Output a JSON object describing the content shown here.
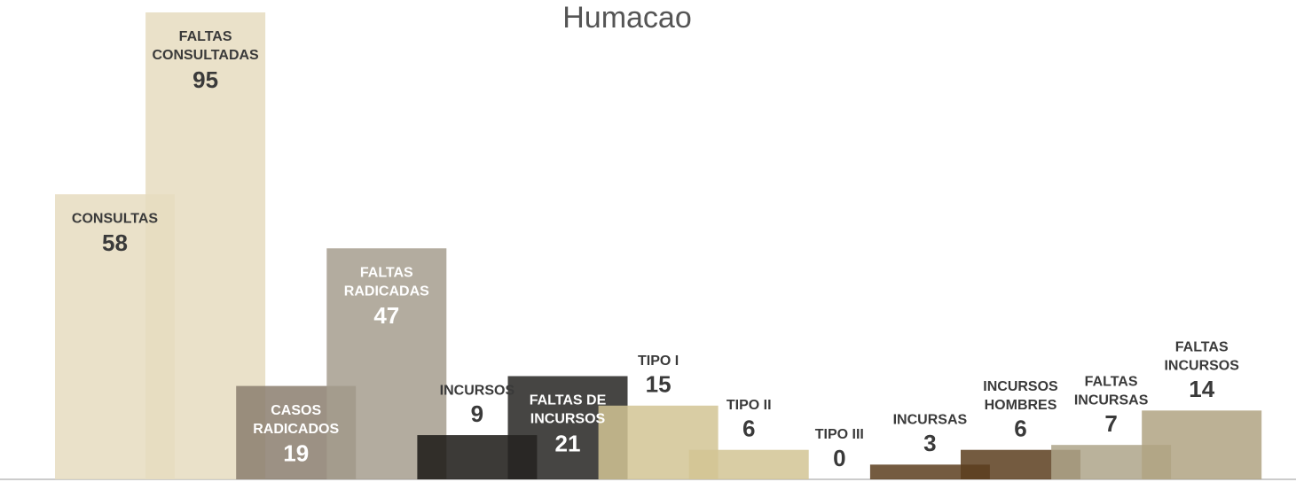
{
  "chart_data": {
    "type": "bar",
    "title": "Humacao",
    "categories": [
      [
        "CONSULTAS"
      ],
      [
        "FALTAS",
        "CONSULTADAS"
      ],
      [
        "CASOS",
        "RADICADOS"
      ],
      [
        "FALTAS",
        "RADICADAS"
      ],
      [
        "INCURSOS"
      ],
      [
        "FALTAS DE",
        "INCURSOS"
      ],
      [
        "TIPO I"
      ],
      [
        "TIPO II"
      ],
      [
        "TIPO III"
      ],
      [
        "INCURSAS"
      ],
      [
        "INCURSOS",
        "HOMBRES"
      ],
      [
        "FALTAS",
        "INCURSAS"
      ],
      [
        "FALTAS",
        "INCURSOS"
      ]
    ],
    "values": [
      58,
      95,
      19,
      47,
      9,
      21,
      15,
      6,
      0,
      3,
      6,
      7,
      14
    ],
    "colors": [
      "#e6dcc0",
      "#e6dcc0",
      "#8b7e6e",
      "#a69d8e",
      "#1a1814",
      "#262522",
      "#d2c494",
      "#d2c494",
      "#d2c494",
      "#5c3e1e",
      "#5c3e1e",
      "#aea48a",
      "#b0a383"
    ]
  }
}
